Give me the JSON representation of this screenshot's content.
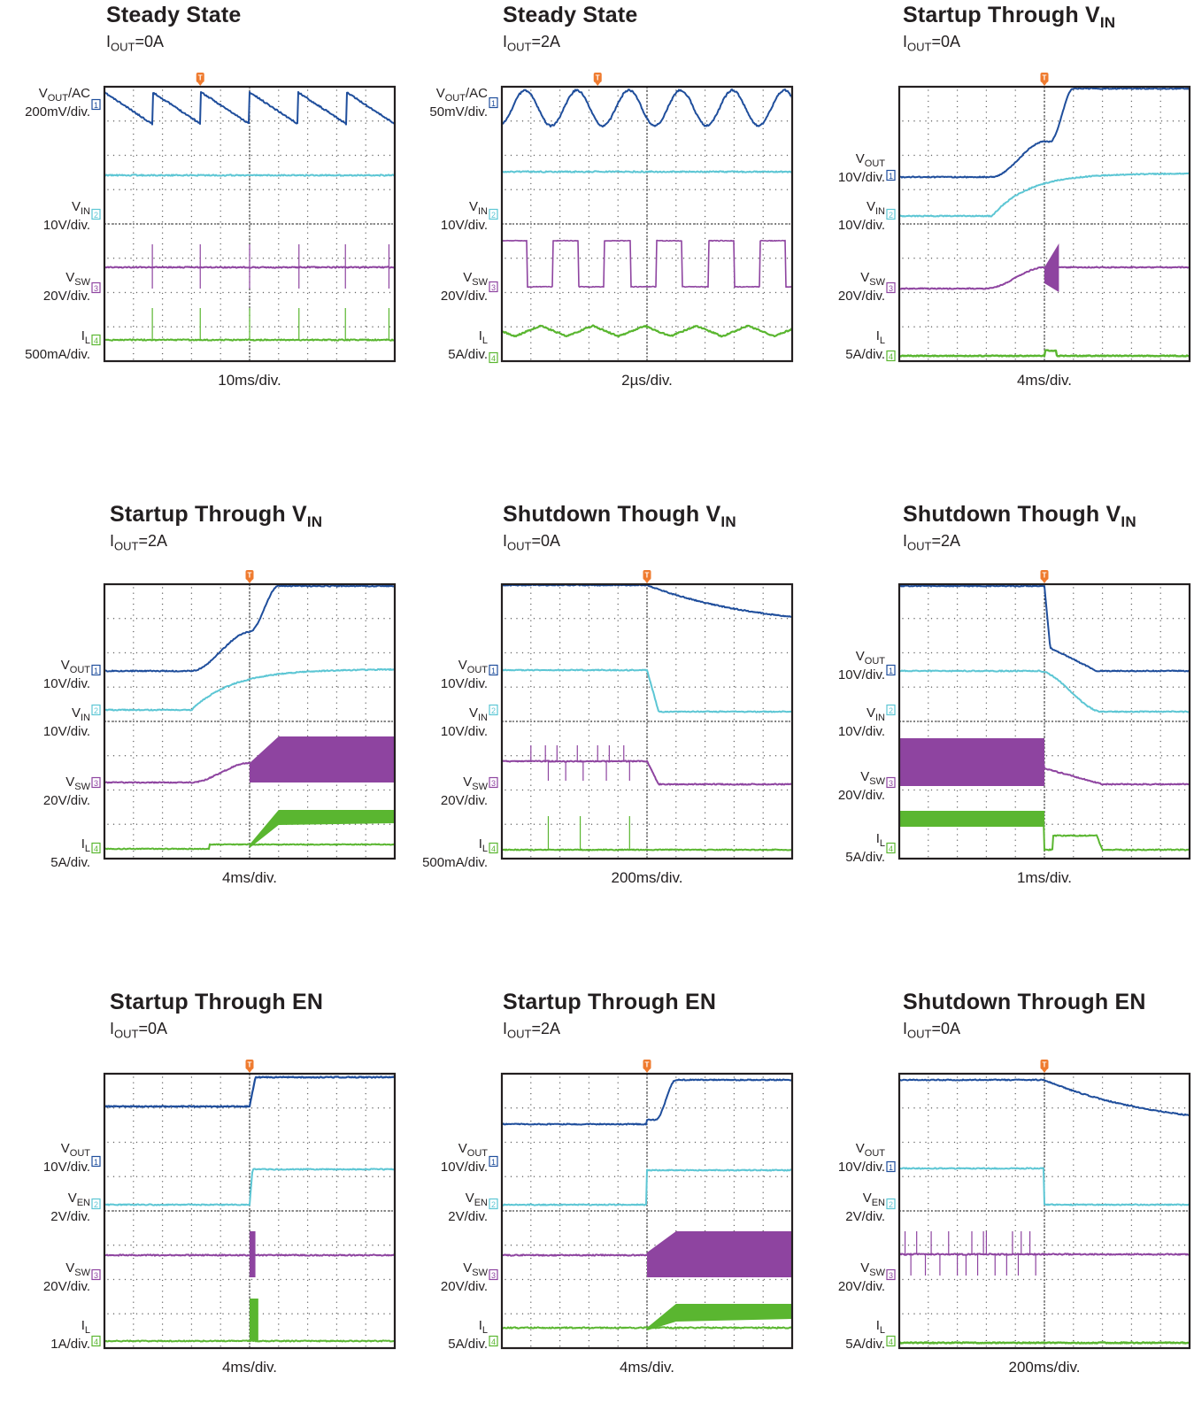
{
  "colors": {
    "ch1": "#1f4e9c",
    "ch2": "#5cc6d4",
    "ch3": "#8e44a0",
    "ch4": "#5ab630",
    "trigger": "#ef7b2f",
    "grid": "#666666"
  },
  "panels": [
    {
      "title": "Steady State",
      "title_sub": "",
      "condition_main": "I",
      "condition_sub": "OUT",
      "condition_value": "=0A",
      "timebase": "10ms/div.",
      "channels": [
        {
          "ch": "1",
          "name": "V",
          "sub": "OUT",
          "suffix": "/AC",
          "scale": "200mV/div."
        },
        {
          "ch": "2",
          "name": "V",
          "sub": "IN",
          "suffix": "",
          "scale": "10V/div."
        },
        {
          "ch": "3",
          "name": "V",
          "sub": "SW",
          "suffix": "",
          "scale": "20V/div."
        },
        {
          "ch": "4",
          "name": "I",
          "sub": "L",
          "suffix": "",
          "scale": "500mA/div."
        }
      ],
      "chart_data": {
        "type": "line",
        "trigger_div": 3.3,
        "waveforms": [
          "sawtooth ripple",
          "flat",
          "periodic spikes",
          "periodic spikes"
        ]
      }
    },
    {
      "title": "Steady State",
      "title_sub": "",
      "condition_main": "I",
      "condition_sub": "OUT",
      "condition_value": "=2A",
      "timebase": "2µs/div.",
      "channels": [
        {
          "ch": "1",
          "name": "V",
          "sub": "OUT",
          "suffix": "/AC",
          "scale": "50mV/div."
        },
        {
          "ch": "2",
          "name": "V",
          "sub": "IN",
          "suffix": "",
          "scale": "10V/div."
        },
        {
          "ch": "3",
          "name": "V",
          "sub": "SW",
          "suffix": "",
          "scale": "20V/div."
        },
        {
          "ch": "4",
          "name": "I",
          "sub": "L",
          "suffix": "",
          "scale": "5A/div."
        }
      ],
      "chart_data": {
        "type": "line",
        "trigger_div": 3.3,
        "waveforms": [
          "sine ripple",
          "flat",
          "square wave",
          "triangle"
        ]
      }
    },
    {
      "title": "Startup Through V",
      "title_sub": "IN",
      "condition_main": "I",
      "condition_sub": "OUT",
      "condition_value": "=0A",
      "timebase": "4ms/div.",
      "channels": [
        {
          "ch": "1",
          "name": "V",
          "sub": "OUT",
          "suffix": "",
          "scale": "10V/div."
        },
        {
          "ch": "2",
          "name": "V",
          "sub": "IN",
          "suffix": "",
          "scale": "10V/div."
        },
        {
          "ch": "3",
          "name": "V",
          "sub": "SW",
          "suffix": "",
          "scale": "20V/div."
        },
        {
          "ch": "4",
          "name": "I",
          "sub": "L",
          "suffix": "",
          "scale": "5A/div."
        }
      ],
      "chart_data": {
        "type": "line",
        "trigger_div": 5.0,
        "waveforms": [
          "ramp up",
          "ramp up",
          "ramp then burst",
          "small pulse"
        ]
      }
    },
    {
      "title": "Startup Through V",
      "title_sub": "IN",
      "condition_main": "I",
      "condition_sub": "OUT",
      "condition_value": "=2A",
      "timebase": "4ms/div.",
      "channels": [
        {
          "ch": "1",
          "name": "V",
          "sub": "OUT",
          "suffix": "",
          "scale": "10V/div."
        },
        {
          "ch": "2",
          "name": "V",
          "sub": "IN",
          "suffix": "",
          "scale": "10V/div."
        },
        {
          "ch": "3",
          "name": "V",
          "sub": "SW",
          "suffix": "",
          "scale": "20V/div."
        },
        {
          "ch": "4",
          "name": "I",
          "sub": "L",
          "suffix": "",
          "scale": "5A/div."
        }
      ],
      "chart_data": {
        "type": "line",
        "trigger_div": 5.0,
        "waveforms": [
          "ramp up",
          "ramp up",
          "switching band",
          "ramp to band"
        ]
      }
    },
    {
      "title": "Shutdown Though V",
      "title_sub": "IN",
      "condition_main": "I",
      "condition_sub": "OUT",
      "condition_value": "=0A",
      "timebase": "200ms/div.",
      "channels": [
        {
          "ch": "1",
          "name": "V",
          "sub": "OUT",
          "suffix": "",
          "scale": "10V/div."
        },
        {
          "ch": "2",
          "name": "V",
          "sub": "IN",
          "suffix": "",
          "scale": "10V/div."
        },
        {
          "ch": "3",
          "name": "V",
          "sub": "SW",
          "suffix": "",
          "scale": "20V/div."
        },
        {
          "ch": "4",
          "name": "I",
          "sub": "L",
          "suffix": "",
          "scale": "500mA/div."
        }
      ],
      "chart_data": {
        "type": "line",
        "trigger_div": 5.0,
        "waveforms": [
          "decay",
          "fall",
          "spikes then fall",
          "spikes"
        ]
      }
    },
    {
      "title": "Shutdown Though V",
      "title_sub": "IN",
      "condition_main": "I",
      "condition_sub": "OUT",
      "condition_value": "=2A",
      "timebase": "1ms/div.",
      "channels": [
        {
          "ch": "1",
          "name": "V",
          "sub": "OUT",
          "suffix": "",
          "scale": "10V/div."
        },
        {
          "ch": "2",
          "name": "V",
          "sub": "IN",
          "suffix": "",
          "scale": "10V/div."
        },
        {
          "ch": "3",
          "name": "V",
          "sub": "SW",
          "suffix": "",
          "scale": "20V/div."
        },
        {
          "ch": "4",
          "name": "I",
          "sub": "L",
          "suffix": "",
          "scale": "5A/div."
        }
      ],
      "chart_data": {
        "type": "line",
        "trigger_div": 5.0,
        "waveforms": [
          "fall",
          "fall",
          "band then fall",
          "band then fall"
        ]
      }
    },
    {
      "title": "Startup Through EN",
      "title_sub": "",
      "condition_main": "I",
      "condition_sub": "OUT",
      "condition_value": "=0A",
      "timebase": "4ms/div.",
      "channels": [
        {
          "ch": "1",
          "name": "V",
          "sub": "OUT",
          "suffix": "",
          "scale": "10V/div."
        },
        {
          "ch": "2",
          "name": "V",
          "sub": "EN",
          "suffix": "",
          "scale": "2V/div."
        },
        {
          "ch": "3",
          "name": "V",
          "sub": "SW",
          "suffix": "",
          "scale": "20V/div."
        },
        {
          "ch": "4",
          "name": "I",
          "sub": "L",
          "suffix": "",
          "scale": "1A/div."
        }
      ],
      "chart_data": {
        "type": "line",
        "trigger_div": 5.0,
        "waveforms": [
          "step up",
          "step up",
          "burst",
          "burst"
        ]
      }
    },
    {
      "title": "Startup Through EN",
      "title_sub": "",
      "condition_main": "I",
      "condition_sub": "OUT",
      "condition_value": "=2A",
      "timebase": "4ms/div.",
      "channels": [
        {
          "ch": "1",
          "name": "V",
          "sub": "OUT",
          "suffix": "",
          "scale": "10V/div."
        },
        {
          "ch": "2",
          "name": "V",
          "sub": "EN",
          "suffix": "",
          "scale": "2V/div."
        },
        {
          "ch": "3",
          "name": "V",
          "sub": "SW",
          "suffix": "",
          "scale": "20V/div."
        },
        {
          "ch": "4",
          "name": "I",
          "sub": "L",
          "suffix": "",
          "scale": "5A/div."
        }
      ],
      "chart_data": {
        "type": "line",
        "trigger_div": 5.0,
        "waveforms": [
          "ramp up",
          "step up",
          "switching band",
          "ramp to band"
        ]
      }
    },
    {
      "title": "Shutdown Through EN",
      "title_sub": "",
      "condition_main": "I",
      "condition_sub": "OUT",
      "condition_value": "=0A",
      "timebase": "200ms/div.",
      "channels": [
        {
          "ch": "1",
          "name": "V",
          "sub": "OUT",
          "suffix": "",
          "scale": "10V/div."
        },
        {
          "ch": "2",
          "name": "V",
          "sub": "EN",
          "suffix": "",
          "scale": "2V/div."
        },
        {
          "ch": "3",
          "name": "V",
          "sub": "SW",
          "suffix": "",
          "scale": "20V/div."
        },
        {
          "ch": "4",
          "name": "I",
          "sub": "L",
          "suffix": "",
          "scale": "5A/div."
        }
      ],
      "chart_data": {
        "type": "line",
        "trigger_div": 5.0,
        "waveforms": [
          "decay",
          "step down",
          "spikes",
          "flat"
        ]
      }
    }
  ]
}
